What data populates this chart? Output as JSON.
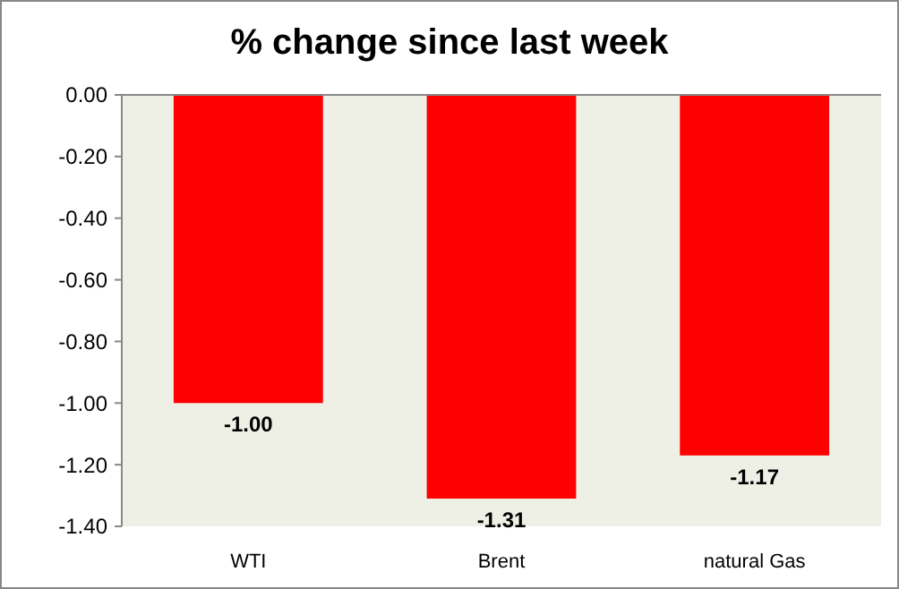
{
  "chart_data": {
    "type": "bar",
    "title": "% change since last week",
    "categories": [
      "WTI",
      "Brent",
      "natural Gas"
    ],
    "values": [
      -1.0,
      -1.31,
      -1.17
    ],
    "value_labels": [
      "-1.00",
      "-1.31",
      "-1.17"
    ],
    "color": "#ff0000",
    "ylim": [
      -1.4,
      0
    ],
    "yticks": [
      {
        "value": 0,
        "label": "0.00"
      },
      {
        "value": -0.2,
        "label": "-0.20"
      },
      {
        "value": -0.4,
        "label": "-0.40"
      },
      {
        "value": -0.6,
        "label": "-0.60"
      },
      {
        "value": -0.8,
        "label": "-0.80"
      },
      {
        "value": -1.0,
        "label": "-1.00"
      },
      {
        "value": -1.2,
        "label": "-1.20"
      },
      {
        "value": -1.4,
        "label": "-1.40"
      }
    ],
    "grid": false
  }
}
